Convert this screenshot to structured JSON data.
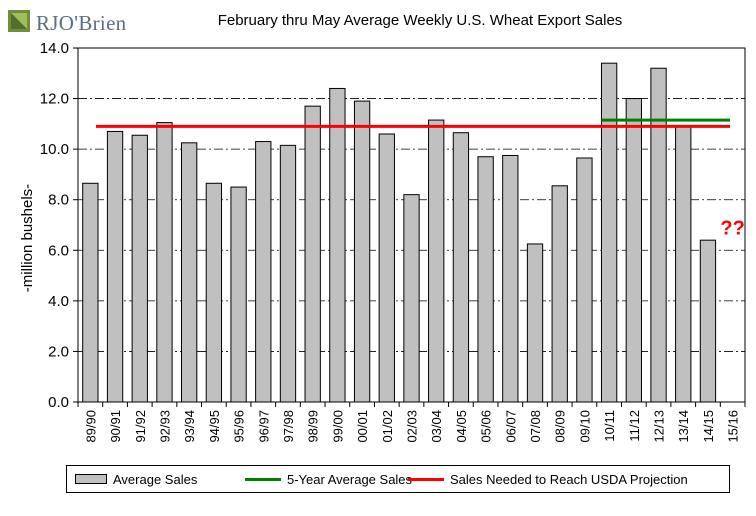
{
  "logo": {
    "text": "RJO'Brien"
  },
  "chart_data": {
    "type": "bar",
    "title": "February thru May Average Weekly U.S. Wheat Export Sales",
    "ylabel": "-million bushels-",
    "xlabel": "",
    "ylim": [
      0,
      14
    ],
    "yticks": [
      "0.0",
      "2.0",
      "4.0",
      "6.0",
      "8.0",
      "10.0",
      "12.0",
      "14.0"
    ],
    "grid": "horizontal dash-dot",
    "legend_position": "bottom",
    "categories": [
      "89/90",
      "90/91",
      "91/92",
      "92/93",
      "93/94",
      "94/95",
      "95/96",
      "96/97",
      "97/98",
      "98/99",
      "99/00",
      "00/01",
      "01/02",
      "02/03",
      "03/04",
      "04/05",
      "05/06",
      "06/07",
      "07/08",
      "08/09",
      "09/10",
      "10/11",
      "11/12",
      "12/13",
      "13/14",
      "14/15",
      "15/16"
    ],
    "series": [
      {
        "name": "Average Sales",
        "color": "#c0c0c0",
        "values": [
          8.65,
          10.7,
          10.55,
          11.05,
          10.25,
          8.65,
          8.5,
          10.3,
          10.15,
          11.7,
          12.4,
          11.9,
          10.6,
          8.2,
          11.15,
          10.65,
          9.7,
          9.75,
          6.25,
          8.55,
          9.65,
          13.4,
          12.0,
          13.2,
          10.9,
          6.4,
          null
        ]
      },
      {
        "name": "5-Year Average Sales",
        "color": "#008000",
        "value": 11.15,
        "from": "10/11",
        "to": "15/16"
      },
      {
        "name": "Sales Needed to Reach USDA Projection",
        "color": "#ff0000",
        "value": 10.9,
        "from": "89/90",
        "to": "15/16"
      }
    ],
    "annotations": [
      {
        "text": "??",
        "color": "#ff0000",
        "at": "15/16",
        "y": 6.9
      }
    ]
  }
}
